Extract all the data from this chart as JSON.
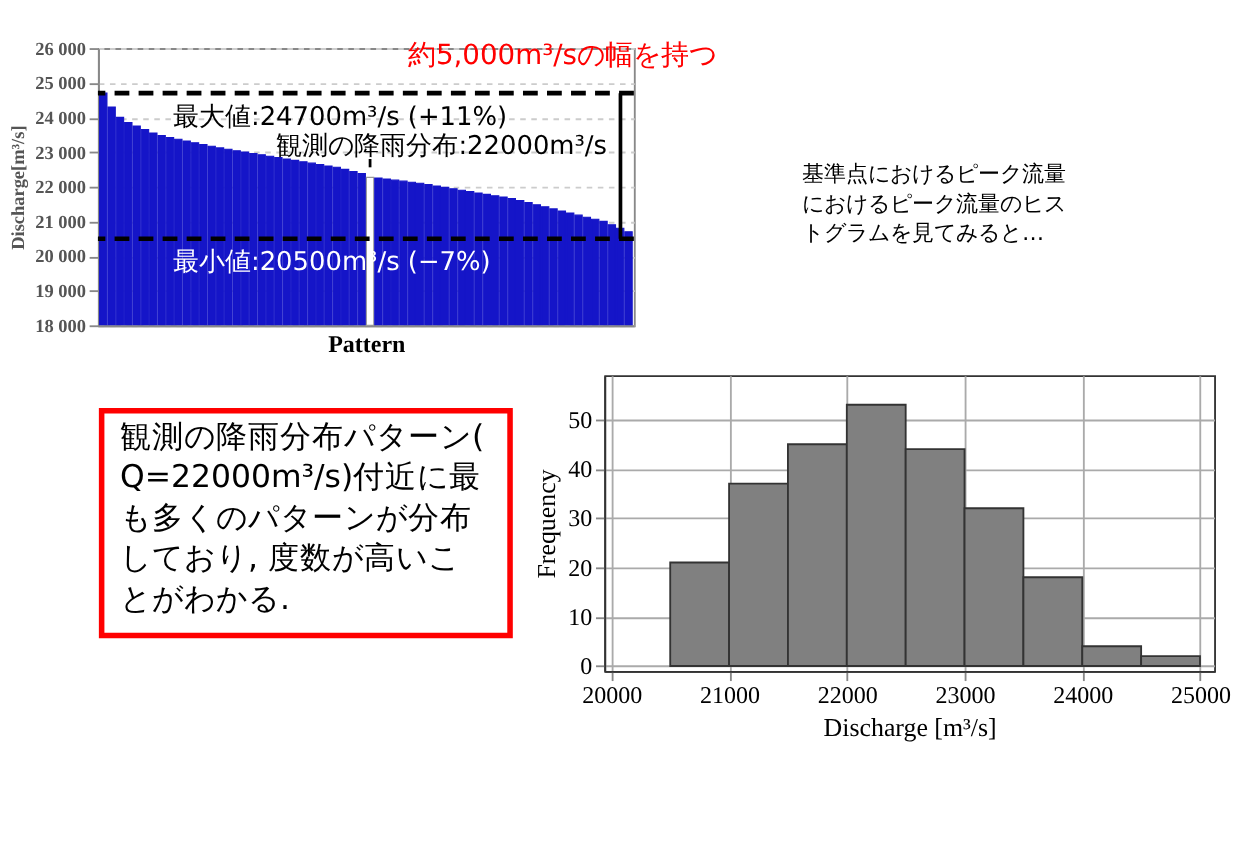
{
  "chart_data": [
    {
      "type": "bar",
      "xlabel": "Pattern",
      "ylabel": "Discharge[m³/s]",
      "categories": [
        null,
        null,
        null,
        null,
        null,
        null,
        null,
        null,
        null,
        null,
        null,
        null,
        null,
        null,
        null,
        null,
        null,
        null,
        null,
        null,
        null,
        null,
        null,
        null,
        null,
        null,
        null,
        null,
        null,
        null,
        null,
        null,
        null,
        null,
        null,
        null,
        null,
        null,
        null,
        null,
        null,
        null,
        null,
        null,
        null,
        null,
        null,
        null,
        null,
        null,
        null,
        null,
        null,
        null,
        null,
        null,
        null,
        null,
        null,
        null,
        null,
        null,
        null,
        null
      ],
      "values": [
        24700,
        24300,
        24000,
        23850,
        23750,
        23650,
        23550,
        23480,
        23420,
        23370,
        23320,
        23270,
        23220,
        23170,
        23120,
        23080,
        23040,
        23000,
        22960,
        22920,
        22880,
        22840,
        22800,
        22760,
        22720,
        22680,
        22640,
        22600,
        22560,
        22500,
        22440,
        22380,
        22270,
        22250,
        22220,
        22190,
        22160,
        22130,
        22100,
        22060,
        22020,
        21980,
        21940,
        21900,
        21860,
        21820,
        21780,
        21740,
        21700,
        21660,
        21600,
        21540,
        21480,
        21420,
        21360,
        21300,
        21240,
        21180,
        21120,
        21060,
        21000,
        20900,
        20800,
        20700
      ],
      "colors": [
        "#1515c8",
        "#1515c8",
        "#1515c8",
        "#1515c8",
        "#1515c8",
        "#1515c8",
        "#1515c8",
        "#1515c8",
        "#1515c8",
        "#1515c8",
        "#1515c8",
        "#1515c8",
        "#1515c8",
        "#1515c8",
        "#1515c8",
        "#1515c8",
        "#1515c8",
        "#1515c8",
        "#1515c8",
        "#1515c8",
        "#1515c8",
        "#1515c8",
        "#1515c8",
        "#1515c8",
        "#1515c8",
        "#1515c8",
        "#1515c8",
        "#1515c8",
        "#1515c8",
        "#1515c8",
        "#1515c8",
        "#1515c8",
        "#ffffff",
        "#1515c8",
        "#1515c8",
        "#1515c8",
        "#1515c8",
        "#1515c8",
        "#1515c8",
        "#1515c8",
        "#1515c8",
        "#1515c8",
        "#1515c8",
        "#1515c8",
        "#1515c8",
        "#1515c8",
        "#1515c8",
        "#1515c8",
        "#1515c8",
        "#1515c8",
        "#1515c8",
        "#1515c8",
        "#1515c8",
        "#1515c8",
        "#1515c8",
        "#1515c8",
        "#1515c8",
        "#1515c8",
        "#1515c8",
        "#1515c8",
        "#1515c8",
        "#1515c8",
        "#1515c8",
        "#1515c8"
      ],
      "ylim": [
        18000,
        26000
      ],
      "yticks": [
        {
          "value": 18000,
          "label": "18 000"
        },
        {
          "value": 19000,
          "label": "19 000"
        },
        {
          "value": 20000,
          "label": "20 000"
        },
        {
          "value": 21000,
          "label": "21 000"
        },
        {
          "value": 22000,
          "label": "22 000"
        },
        {
          "value": 23000,
          "label": "23 000"
        },
        {
          "value": 24000,
          "label": "24 000"
        },
        {
          "value": 25000,
          "label": "25 000"
        },
        {
          "value": 26000,
          "label": "26 000"
        }
      ],
      "grid": "y",
      "tick_labels": "y",
      "ref_lines": [
        {
          "axis": "y",
          "value": 24700,
          "label": "最大値:24700m³/s (+11%)",
          "color": "#000000",
          "line_style": "dashed"
        },
        {
          "axis": "y",
          "value": 20500,
          "label": "最小値:20500m³/s (−7%)",
          "color": "#000000",
          "line_style": "dashed"
        }
      ],
      "annotations": [
        "観測の降雨分布:22000m³/s",
        "約5,000m³/sの幅を持つ"
      ]
    },
    {
      "type": "histogram",
      "xlabel": "Discharge [m³/s]",
      "ylabel": "Frequency",
      "bins": [
        20500,
        21000,
        21500,
        22000,
        22500,
        23000,
        23500,
        24000,
        24500,
        25000
      ],
      "values": [
        21,
        37,
        45,
        53,
        44,
        32,
        18,
        4,
        2
      ],
      "color": "#808080",
      "xlim": [
        19940,
        25120
      ],
      "xticks": [
        20000,
        21000,
        22000,
        23000,
        24000,
        25000
      ],
      "ylim": [
        -1,
        59
      ],
      "yticks": [
        0,
        10,
        20,
        30,
        40,
        50
      ],
      "grid": true,
      "annotations": [
        "基準点におけるピーク流量におけるピーク流量のヒストグラムを見てみると…",
        "観測の降雨分布パターン(Q=22000m³/s)付近に最も多くのパターンが分布しており, 度数が高いことがわかる."
      ]
    }
  ]
}
